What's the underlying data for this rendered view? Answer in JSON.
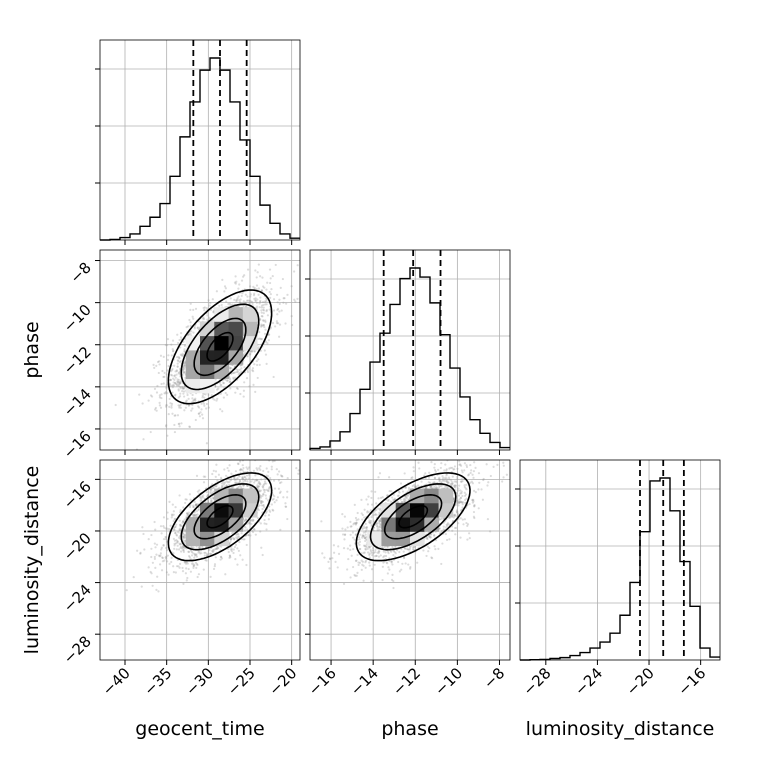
{
  "chart_data": {
    "type": "corner",
    "parameters": [
      "geocent_time",
      "phase",
      "luminosity_distance"
    ],
    "ranges": {
      "geocent_time": [
        -43,
        -19
      ],
      "phase": [
        -17,
        -7.5
      ],
      "luminosity_distance": [
        -30,
        -14.5
      ]
    },
    "ticks": {
      "geocent_time": [
        -40,
        -35,
        -30,
        -25,
        -20
      ],
      "phase": [
        -16,
        -14,
        -12,
        -10,
        -8
      ],
      "luminosity_distance": [
        -28,
        -24,
        -20,
        -16
      ]
    },
    "tick_labels": {
      "geocent_time": [
        "−40",
        "−35",
        "−30",
        "−25",
        "−20"
      ],
      "phase": [
        "−16",
        "−14",
        "−12",
        "−10",
        "−8"
      ],
      "luminosity_distance": [
        "−28",
        "−24",
        "−20",
        "−16"
      ]
    },
    "quantiles": {
      "geocent_time": [
        -31.8,
        -28.6,
        -25.4
      ],
      "phase": [
        -13.5,
        -12.1,
        -10.8
      ],
      "luminosity_distance": [
        -20.7,
        -18.9,
        -17.3
      ]
    },
    "histograms": {
      "geocent_time": {
        "edges": [
          -43,
          -41.8,
          -40.6,
          -39.4,
          -38.2,
          -37,
          -35.8,
          -34.6,
          -33.4,
          -32.2,
          -31,
          -29.8,
          -28.6,
          -27.4,
          -26.2,
          -25,
          -23.8,
          -22.6,
          -21.4,
          -20.2,
          -19
        ],
        "counts": [
          0,
          2,
          8,
          20,
          45,
          75,
          120,
          210,
          340,
          455,
          560,
          600,
          560,
          455,
          330,
          210,
          115,
          55,
          20,
          6
        ]
      },
      "phase": {
        "edges": [
          -17,
          -16.525,
          -16.05,
          -15.575,
          -15.1,
          -14.625,
          -14.15,
          -13.675,
          -13.2,
          -12.725,
          -12.25,
          -11.775,
          -11.3,
          -10.825,
          -10.35,
          -9.875,
          -9.4,
          -8.925,
          -8.45,
          -7.975,
          -7.5
        ],
        "counts": [
          5,
          10,
          30,
          60,
          120,
          200,
          290,
          385,
          480,
          565,
          600,
          570,
          485,
          380,
          270,
          175,
          100,
          55,
          25,
          8
        ]
      },
      "luminosity_distance": {
        "edges": [
          -30,
          -29.225,
          -28.45,
          -27.675,
          -26.9,
          -26.125,
          -25.35,
          -24.575,
          -23.8,
          -23.025,
          -22.25,
          -21.475,
          -20.7,
          -19.925,
          -19.15,
          -18.375,
          -17.6,
          -16.825,
          -16.05,
          -15.275,
          -14.5
        ],
        "counts": [
          0,
          1,
          2,
          5,
          8,
          15,
          25,
          40,
          60,
          90,
          150,
          260,
          430,
          600,
          610,
          500,
          330,
          180,
          40,
          10
        ]
      }
    },
    "joint": [
      {
        "x": "geocent_time",
        "y": "phase",
        "mean": [
          -28.6,
          -12.1
        ],
        "sigma": [
          3.1,
          1.35
        ],
        "rho": 0.6
      },
      {
        "x": "geocent_time",
        "y": "luminosity_distance",
        "mean": [
          -28.6,
          -18.9
        ],
        "sigma": [
          3.1,
          1.7
        ],
        "rho": 0.6
      },
      {
        "x": "phase",
        "y": "luminosity_distance",
        "mean": [
          -12.1,
          -18.9
        ],
        "sigma": [
          1.35,
          1.7
        ],
        "rho": 0.6
      }
    ],
    "grid": true,
    "scatter_points_per_panel": 2200
  }
}
